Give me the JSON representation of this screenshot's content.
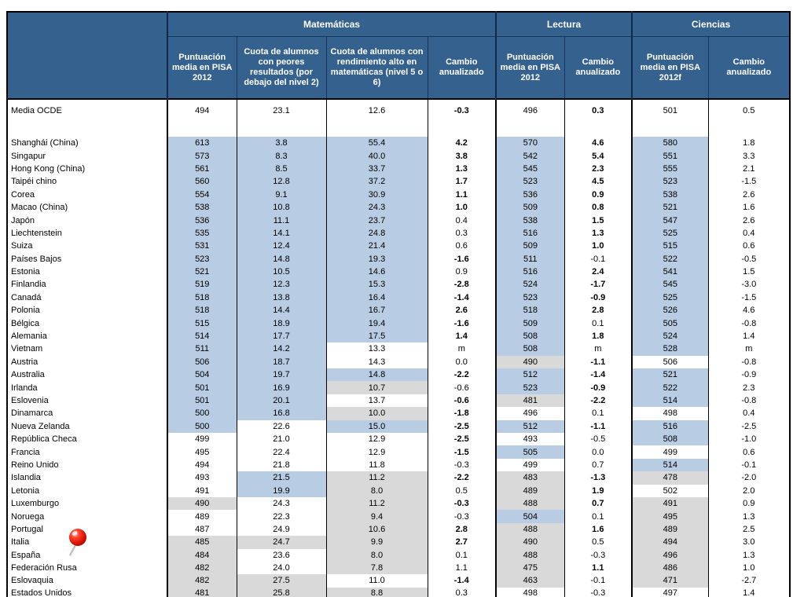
{
  "colors": {
    "header_bg": "#35618F",
    "header_text": "#FFFFFF",
    "cell_above_average": "#B8CCE4",
    "cell_below_average": "#D9D9D9",
    "cell_neutral": "#FFFFFF",
    "border": "#000000",
    "pin_red": "#DD1100"
  },
  "icons": {
    "pushpin": "red-pushpin-icon"
  },
  "table": {
    "groups": [
      {
        "label": "Matemáticas",
        "span": 4
      },
      {
        "label": "Lectura",
        "span": 2
      },
      {
        "label": "Ciencias",
        "span": 2
      }
    ],
    "columns": [
      "Puntuación media en PISA 2012",
      "Cuota de alumnos con peores resultados (por debajo del nivel 2)",
      "Cuota de alumnos con rendimiento alto en matemáticas (nivel 5 o 6)",
      "Cambio anualizado",
      "Puntuación media en PISA 2012",
      "Cambio anualizado",
      "Puntuación media en PISA 2012f",
      "Cambio anualizado"
    ],
    "ocde_row": {
      "name": "Media OCDE",
      "v": [
        "494",
        "23.1",
        "12.6",
        "-0.3",
        "496",
        "0.3",
        "501",
        "0.5"
      ],
      "bg": "wwwwwwww",
      "bold": "00010100"
    },
    "rows": [
      {
        "name": "Shanghái (China)",
        "v": [
          "613",
          "3.8",
          "55.4",
          "4.2",
          "570",
          "4.6",
          "580",
          "1.8"
        ],
        "bg": "bbbwbwbw",
        "bold": "00010100"
      },
      {
        "name": "Singapur",
        "v": [
          "573",
          "8.3",
          "40.0",
          "3.8",
          "542",
          "5.4",
          "551",
          "3.3"
        ],
        "bg": "bbbwbwbw",
        "bold": "00010100"
      },
      {
        "name": "Hong Kong (China)",
        "v": [
          "561",
          "8.5",
          "33.7",
          "1.3",
          "545",
          "2.3",
          "555",
          "2.1"
        ],
        "bg": "bbbwbwbw",
        "bold": "00010100"
      },
      {
        "name": "Taipéi chino",
        "v": [
          "560",
          "12.8",
          "37.2",
          "1.7",
          "523",
          "4.5",
          "523",
          "-1.5"
        ],
        "bg": "bbbwbwbw",
        "bold": "00010100"
      },
      {
        "name": "Corea",
        "v": [
          "554",
          "9.1",
          "30.9",
          "1.1",
          "536",
          "0.9",
          "538",
          "2.6"
        ],
        "bg": "bbbwbwbw",
        "bold": "00010100"
      },
      {
        "name": "Macao (China)",
        "v": [
          "538",
          "10.8",
          "24.3",
          "1.0",
          "509",
          "0.8",
          "521",
          "1.6"
        ],
        "bg": "bbbwbwbw",
        "bold": "00010100"
      },
      {
        "name": "Japón",
        "v": [
          "536",
          "11.1",
          "23.7",
          "0.4",
          "538",
          "1.5",
          "547",
          "2.6"
        ],
        "bg": "bbbwbwbw",
        "bold": "00000100"
      },
      {
        "name": "Liechtenstein",
        "v": [
          "535",
          "14.1",
          "24.8",
          "0.3",
          "516",
          "1.3",
          "525",
          "0.4"
        ],
        "bg": "bbbwbwbw",
        "bold": "00000100"
      },
      {
        "name": "Suiza",
        "v": [
          "531",
          "12.4",
          "21.4",
          "0.6",
          "509",
          "1.0",
          "515",
          "0.6"
        ],
        "bg": "bbbwbwbw",
        "bold": "00000100"
      },
      {
        "name": "Países Bajos",
        "v": [
          "523",
          "14.8",
          "19.3",
          "-1.6",
          "511",
          "-0.1",
          "522",
          "-0.5"
        ],
        "bg": "bbbwbwbw",
        "bold": "00010000"
      },
      {
        "name": "Estonia",
        "v": [
          "521",
          "10.5",
          "14.6",
          "0.9",
          "516",
          "2.4",
          "541",
          "1.5"
        ],
        "bg": "bbbwbwbw",
        "bold": "00000100"
      },
      {
        "name": "Finlandia",
        "v": [
          "519",
          "12.3",
          "15.3",
          "-2.8",
          "524",
          "-1.7",
          "545",
          "-3.0"
        ],
        "bg": "bbbwbwbw",
        "bold": "00010100"
      },
      {
        "name": "Canadá",
        "v": [
          "518",
          "13.8",
          "16.4",
          "-1.4",
          "523",
          "-0.9",
          "525",
          "-1.5"
        ],
        "bg": "bbbwbwbw",
        "bold": "00010100"
      },
      {
        "name": "Polonia",
        "v": [
          "518",
          "14.4",
          "16.7",
          "2.6",
          "518",
          "2.8",
          "526",
          "4.6"
        ],
        "bg": "bbbwbwbw",
        "bold": "00010100"
      },
      {
        "name": "Bélgica",
        "v": [
          "515",
          "18.9",
          "19.4",
          "-1.6",
          "509",
          "0.1",
          "505",
          "-0.8"
        ],
        "bg": "bbbwbwbw",
        "bold": "00010000"
      },
      {
        "name": "Alemania",
        "v": [
          "514",
          "17.7",
          "17.5",
          "1.4",
          "508",
          "1.8",
          "524",
          "1.4"
        ],
        "bg": "bbbwbwbw",
        "bold": "00010100"
      },
      {
        "name": "Vietnam",
        "v": [
          "511",
          "14.2",
          "13.3",
          "m",
          "508",
          "m",
          "528",
          "m"
        ],
        "bg": "bbwwbwbw",
        "bold": "00000000"
      },
      {
        "name": "Austria",
        "v": [
          "506",
          "18.7",
          "14.3",
          "0.0",
          "490",
          "-1.1",
          "506",
          "-0.8"
        ],
        "bg": "bbwwgwww",
        "bold": "00000100"
      },
      {
        "name": "Australia",
        "v": [
          "504",
          "19.7",
          "14.8",
          "-2.2",
          "512",
          "-1.4",
          "521",
          "-0.9"
        ],
        "bg": "bbbwbwbw",
        "bold": "00010100"
      },
      {
        "name": "Irlanda",
        "v": [
          "501",
          "16.9",
          "10.7",
          "-0.6",
          "523",
          "-0.9",
          "522",
          "2.3"
        ],
        "bg": "bbgwbwbw",
        "bold": "00000100"
      },
      {
        "name": "Eslovenia",
        "v": [
          "501",
          "20.1",
          "13.7",
          "-0.6",
          "481",
          "-2.2",
          "514",
          "-0.8"
        ],
        "bg": "bbwwgwbw",
        "bold": "00010100"
      },
      {
        "name": "Dinamarca",
        "v": [
          "500",
          "16.8",
          "10.0",
          "-1.8",
          "496",
          "0.1",
          "498",
          "0.4"
        ],
        "bg": "bbgwwwww",
        "bold": "00010000"
      },
      {
        "name": "Nueva Zelanda",
        "v": [
          "500",
          "22.6",
          "15.0",
          "-2.5",
          "512",
          "-1.1",
          "516",
          "-2.5"
        ],
        "bg": "bwbwbwbw",
        "bold": "00010100"
      },
      {
        "name": "República Checa",
        "v": [
          "499",
          "21.0",
          "12.9",
          "-2.5",
          "493",
          "-0.5",
          "508",
          "-1.0"
        ],
        "bg": "wwwwwwbw",
        "bold": "00010000"
      },
      {
        "name": "Francia",
        "v": [
          "495",
          "22.4",
          "12.9",
          "-1.5",
          "505",
          "0.0",
          "499",
          "0.6"
        ],
        "bg": "wwwwbwww",
        "bold": "00010000"
      },
      {
        "name": "Reino Unido",
        "v": [
          "494",
          "21.8",
          "11.8",
          "-0.3",
          "499",
          "0.7",
          "514",
          "-0.1"
        ],
        "bg": "wwwwwwbw",
        "bold": "00000000"
      },
      {
        "name": "Islandia",
        "v": [
          "493",
          "21.5",
          "11.2",
          "-2.2",
          "483",
          "-1.3",
          "478",
          "-2.0"
        ],
        "bg": "wbgwgwgw",
        "bold": "00010100"
      },
      {
        "name": "Letonia",
        "v": [
          "491",
          "19.9",
          "8.0",
          "0.5",
          "489",
          "1.9",
          "502",
          "2.0"
        ],
        "bg": "wbgwgwww",
        "bold": "00000100"
      },
      {
        "name": "Luxemburgo",
        "v": [
          "490",
          "24.3",
          "11.2",
          "-0.3",
          "488",
          "0.7",
          "491",
          "0.9"
        ],
        "bg": "gwgwgwgw",
        "bold": "00010100"
      },
      {
        "name": "Noruega",
        "v": [
          "489",
          "22.3",
          "9.4",
          "-0.3",
          "504",
          "0.1",
          "495",
          "1.3"
        ],
        "bg": "wwgwbwgw",
        "bold": "00000000"
      },
      {
        "name": "Portugal",
        "v": [
          "487",
          "24.9",
          "10.6",
          "2.8",
          "488",
          "1.6",
          "489",
          "2.5"
        ],
        "bg": "wwgwgwgw",
        "bold": "00010100"
      },
      {
        "name": "Italia",
        "v": [
          "485",
          "24.7",
          "9.9",
          "2.7",
          "490",
          "0.5",
          "494",
          "3.0"
        ],
        "bg": "gggwgwgw",
        "bold": "00010000"
      },
      {
        "name": "España",
        "v": [
          "484",
          "23.6",
          "8.0",
          "0.1",
          "488",
          "-0.3",
          "496",
          "1.3"
        ],
        "bg": "gwgwgwgw",
        "bold": "00000000"
      },
      {
        "name": "Federación Rusa",
        "v": [
          "482",
          "24.0",
          "7.8",
          "1.1",
          "475",
          "1.1",
          "486",
          "1.0"
        ],
        "bg": "gwgwgwgw",
        "bold": "00000100"
      },
      {
        "name": "Eslovaquia",
        "v": [
          "482",
          "27.5",
          "11.0",
          "-1.4",
          "463",
          "-0.1",
          "471",
          "-2.7"
        ],
        "bg": "ggwwgwgw",
        "bold": "00010000"
      },
      {
        "name": "Estados Unidos",
        "v": [
          "481",
          "25.8",
          "8.8",
          "0.3",
          "498",
          "-0.3",
          "497",
          "1.4"
        ],
        "bg": "gggwwwww",
        "bold": "00000000"
      }
    ]
  }
}
